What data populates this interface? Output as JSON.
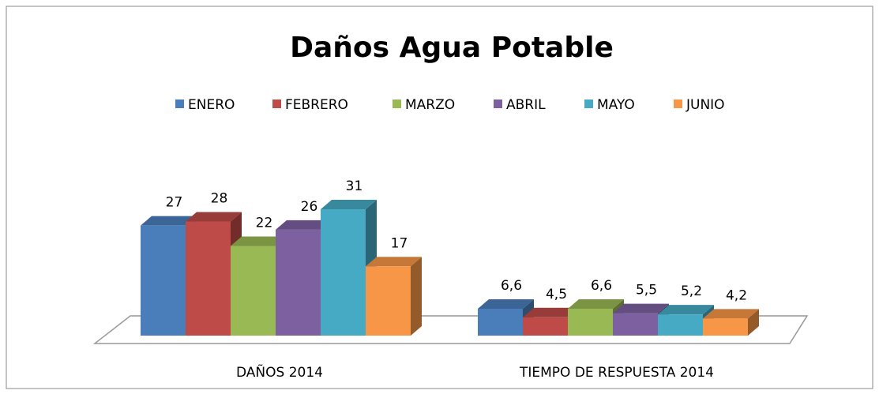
{
  "chart_data": {
    "type": "bar3d",
    "title": "Daños Agua Potable",
    "categories": [
      "DAÑOS 2014",
      "TIEMPO DE RESPUESTA 2014"
    ],
    "legend": "top",
    "series": [
      {
        "name": "ENERO",
        "color": "#4a7ebb",
        "values": [
          27,
          6.6
        ],
        "value_labels": [
          "27",
          "6,6"
        ]
      },
      {
        "name": "FEBRERO",
        "color": "#be4b48",
        "values": [
          28,
          4.5
        ],
        "value_labels": [
          "28",
          "4,5"
        ]
      },
      {
        "name": "MARZO",
        "color": "#98b954",
        "values": [
          22,
          6.6
        ],
        "value_labels": [
          "22",
          "6,6"
        ]
      },
      {
        "name": "ABRIL",
        "color": "#7d60a0",
        "values": [
          26,
          5.5
        ],
        "value_labels": [
          "26",
          "5,5"
        ]
      },
      {
        "name": "MAYO",
        "color": "#46aac5",
        "values": [
          31,
          5.2
        ],
        "value_labels": [
          "31",
          "5,2"
        ]
      },
      {
        "name": "JUNIO",
        "color": "#f79646",
        "values": [
          17,
          4.2
        ],
        "value_labels": [
          "17",
          "4,2"
        ]
      }
    ]
  }
}
